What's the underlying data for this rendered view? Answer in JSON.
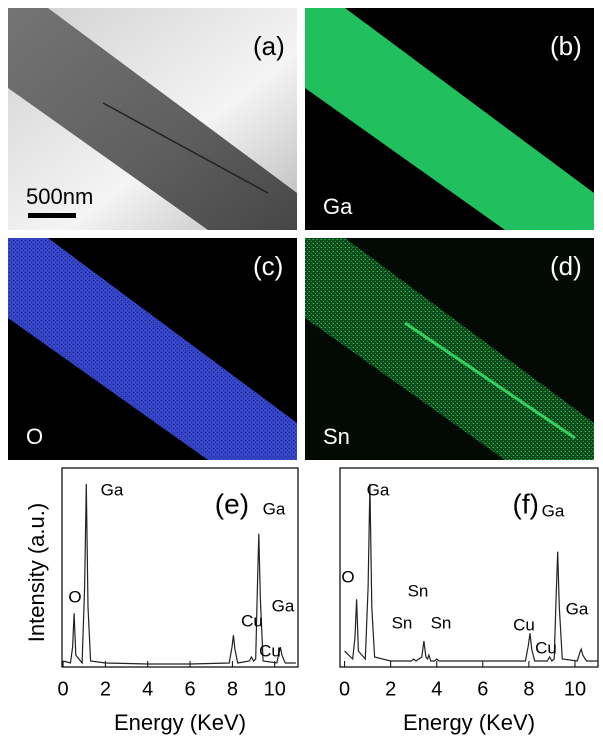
{
  "panels": [
    {
      "label": "(a)",
      "scale_bar": "500nm"
    },
    {
      "label": "(b)",
      "element": "Ga"
    },
    {
      "label": "(c)",
      "element": "O"
    },
    {
      "label": "(d)",
      "element": "Sn"
    }
  ],
  "chart_data": [
    {
      "type": "line",
      "title": "(e)",
      "ylabel": "Intensity (a.u.)",
      "xlabel": "Energy (KeV)",
      "color": "#222222",
      "xlim": [
        -0.05,
        11.1
      ],
      "xticks": [
        0,
        2,
        4,
        6,
        8,
        10
      ],
      "ylim": [
        0,
        100
      ],
      "x": [
        0,
        0.35,
        0.45,
        0.52,
        0.6,
        0.9,
        1.02,
        1.1,
        1.18,
        1.3,
        2,
        4,
        6,
        7.85,
        7.98,
        8.05,
        8.12,
        8.25,
        8.8,
        8.9,
        9.0,
        9.1,
        9.18,
        9.25,
        9.32,
        9.45,
        10.1,
        10.2,
        10.27,
        10.34,
        10.5,
        11
      ],
      "values": [
        3,
        2,
        10,
        27,
        6,
        2,
        40,
        92,
        30,
        3,
        2,
        1.5,
        1.5,
        2,
        10,
        16,
        9,
        2,
        3,
        5,
        3,
        4,
        40,
        67,
        35,
        3,
        2,
        7,
        10,
        6,
        2,
        2
      ],
      "annotations": [
        "O",
        "Ga",
        "Cu",
        "Cu",
        "Ga",
        "Ga"
      ]
    },
    {
      "type": "line",
      "title": "(f)",
      "xlabel": "Energy (KeV)",
      "color": "#222222",
      "xlim": [
        -0.2,
        11
      ],
      "xticks": [
        0,
        2,
        4,
        6,
        8,
        10
      ],
      "ylim": [
        0,
        100
      ],
      "x": [
        0,
        0.35,
        0.45,
        0.52,
        0.6,
        0.9,
        1.02,
        1.1,
        1.18,
        1.3,
        2,
        2.9,
        3.0,
        3.1,
        3.35,
        3.44,
        3.53,
        3.6,
        3.66,
        3.74,
        3.9,
        4.0,
        4.1,
        6,
        7.85,
        7.98,
        8.05,
        8.12,
        8.25,
        8.8,
        8.9,
        9.0,
        9.1,
        9.18,
        9.25,
        9.32,
        9.45,
        10.1,
        10.2,
        10.27,
        10.34,
        10.5,
        11
      ],
      "values": [
        8,
        4,
        15,
        34,
        8,
        4,
        40,
        92,
        30,
        5,
        3,
        3,
        4,
        3,
        5,
        13,
        5,
        4,
        6,
        3,
        3,
        4,
        3,
        3,
        3,
        11,
        17,
        9,
        3,
        3,
        5,
        3,
        4,
        35,
        58,
        30,
        4,
        3,
        7,
        9,
        6,
        3,
        3
      ],
      "annotations": [
        "O",
        "Ga",
        "Sn",
        "Sn",
        "Sn",
        "Cu",
        "Cu",
        "Ga",
        "Ga"
      ]
    }
  ]
}
